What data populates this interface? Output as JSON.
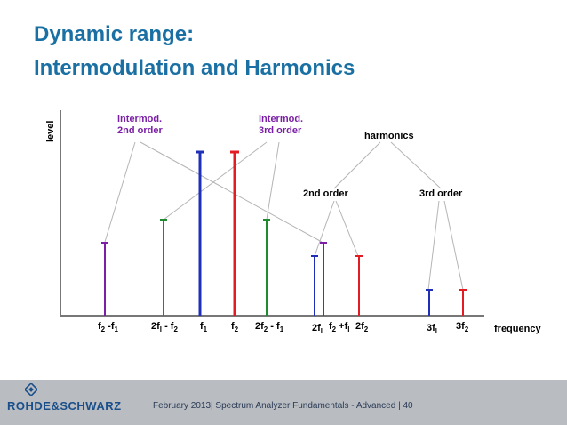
{
  "title_line1": "Dynamic range:",
  "title_line2": "Intermodulation and Harmonics",
  "labels": {
    "intermod_2nd": [
      "intermod.",
      "2nd order"
    ],
    "intermod_3rd": [
      "intermod.",
      "3rd order"
    ],
    "harmonics": "harmonics",
    "harm_2nd": "2nd order",
    "harm_3rd": "3rd order"
  },
  "axes": {
    "y": "level",
    "x": "frequency"
  },
  "ticks": [
    {
      "id": "f2-f1",
      "main": "f",
      "sub1": "2",
      "mid": " -f",
      "sub2": "1"
    },
    {
      "id": "2f1-f2",
      "main": "2f",
      "sub1": "l",
      "mid": " - f",
      "sub2": "2"
    },
    {
      "id": "f1",
      "main": "f",
      "sub1": "1",
      "mid": "",
      "sub2": ""
    },
    {
      "id": "f2",
      "main": "f",
      "sub1": "2",
      "mid": "",
      "sub2": ""
    },
    {
      "id": "2f2-f1",
      "main": "2f",
      "sub1": "2",
      "mid": " - f",
      "sub2": "1"
    },
    {
      "id": "2f1",
      "main": "2f",
      "sub1": "l",
      "mid": "",
      "sub2": ""
    },
    {
      "id": "f2+f1",
      "main": "f",
      "sub1": "2",
      "mid": " +f",
      "sub2": "l"
    },
    {
      "id": "2f2",
      "main": "2f",
      "sub1": "2",
      "mid": "",
      "sub2": ""
    },
    {
      "id": "3f1",
      "main": "3f",
      "sub1": "l",
      "mid": "",
      "sub2": ""
    },
    {
      "id": "3f2",
      "main": "3f",
      "sub1": "2",
      "mid": "",
      "sub2": ""
    }
  ],
  "colors": {
    "title": "#1a6fa3",
    "purple": "#7a1fa6",
    "green": "#1e8c2e",
    "blue": "#1f2fb8",
    "red": "#e31b23"
  },
  "footer": {
    "logo": "ROHDE&SCHWARZ",
    "text": "February 2013| Spectrum Analyzer Fundamentals - Advanced  |  40"
  }
}
